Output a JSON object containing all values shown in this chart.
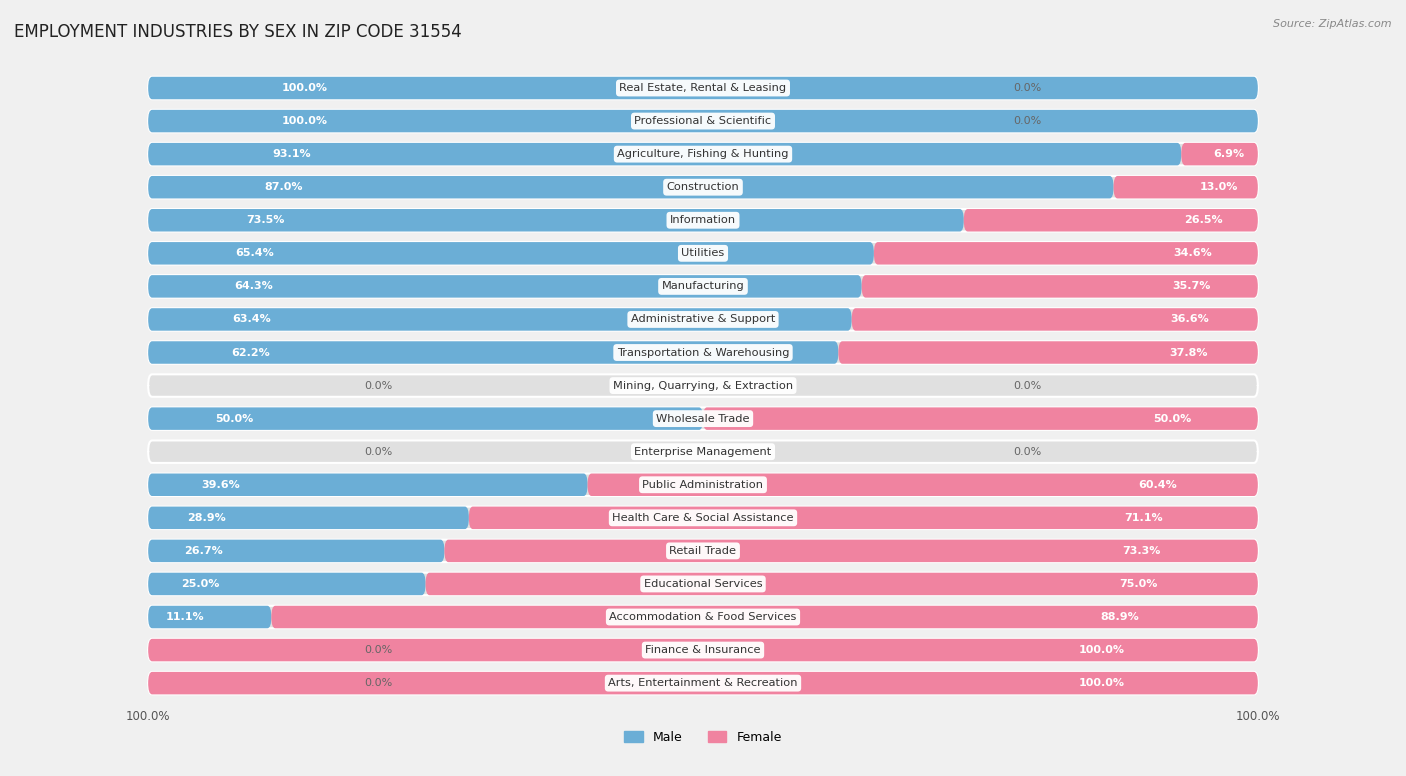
{
  "title": "EMPLOYMENT INDUSTRIES BY SEX IN ZIP CODE 31554",
  "source": "Source: ZipAtlas.com",
  "categories": [
    "Real Estate, Rental & Leasing",
    "Professional & Scientific",
    "Agriculture, Fishing & Hunting",
    "Construction",
    "Information",
    "Utilities",
    "Manufacturing",
    "Administrative & Support",
    "Transportation & Warehousing",
    "Mining, Quarrying, & Extraction",
    "Wholesale Trade",
    "Enterprise Management",
    "Public Administration",
    "Health Care & Social Assistance",
    "Retail Trade",
    "Educational Services",
    "Accommodation & Food Services",
    "Finance & Insurance",
    "Arts, Entertainment & Recreation"
  ],
  "male": [
    100.0,
    100.0,
    93.1,
    87.0,
    73.5,
    65.4,
    64.3,
    63.4,
    62.2,
    0.0,
    50.0,
    0.0,
    39.6,
    28.9,
    26.7,
    25.0,
    11.1,
    0.0,
    0.0
  ],
  "female": [
    0.0,
    0.0,
    6.9,
    13.0,
    26.5,
    34.6,
    35.7,
    36.6,
    37.8,
    0.0,
    50.0,
    0.0,
    60.4,
    71.1,
    73.3,
    75.0,
    88.9,
    100.0,
    100.0
  ],
  "male_color": "#6baed6",
  "female_color": "#f083a0",
  "bg_color": "#f0f0f0",
  "bar_bg_color": "#e0e0e0",
  "title_fontsize": 12,
  "label_fontsize": 8.2,
  "value_fontsize": 8.0
}
